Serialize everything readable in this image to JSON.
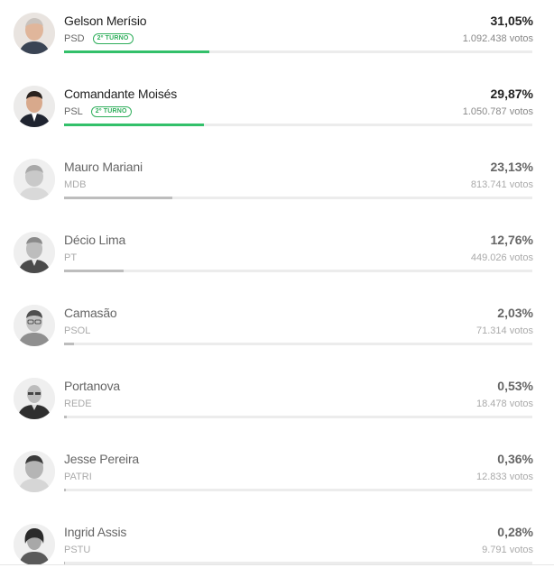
{
  "candidates": [
    {
      "name": "Gelson Merísio",
      "party": "PSD",
      "badge": "2º TURNO",
      "pct": "31,05%",
      "votes": "1.092.438 votos",
      "share": 31.05,
      "status": "elected"
    },
    {
      "name": "Comandante Moisés",
      "party": "PSL",
      "badge": "2º TURNO",
      "pct": "29,87%",
      "votes": "1.050.787 votos",
      "share": 29.87,
      "status": "elected"
    },
    {
      "name": "Mauro Mariani",
      "party": "MDB",
      "badge": "",
      "pct": "23,13%",
      "votes": "813.741 votos",
      "share": 23.13,
      "status": "other"
    },
    {
      "name": "Décio Lima",
      "party": "PT",
      "badge": "",
      "pct": "12,76%",
      "votes": "449.026 votos",
      "share": 12.76,
      "status": "other"
    },
    {
      "name": "Camasão",
      "party": "PSOL",
      "badge": "",
      "pct": "2,03%",
      "votes": "71.314 votos",
      "share": 2.03,
      "status": "other"
    },
    {
      "name": "Portanova",
      "party": "REDE",
      "badge": "",
      "pct": "0,53%",
      "votes": "18.478 votos",
      "share": 0.53,
      "status": "other"
    },
    {
      "name": "Jesse Pereira",
      "party": "PATRI",
      "badge": "",
      "pct": "0,36%",
      "votes": "12.833 votos",
      "share": 0.36,
      "status": "other"
    },
    {
      "name": "Ingrid Assis",
      "party": "PSTU",
      "badge": "",
      "pct": "0,28%",
      "votes": "9.791 votos",
      "share": 0.28,
      "status": "other"
    }
  ],
  "colors": {
    "elected_bar": "#33c06a",
    "other_bar": "#bdbdbd",
    "badge": "#2fae5b",
    "track": "#ececec"
  }
}
